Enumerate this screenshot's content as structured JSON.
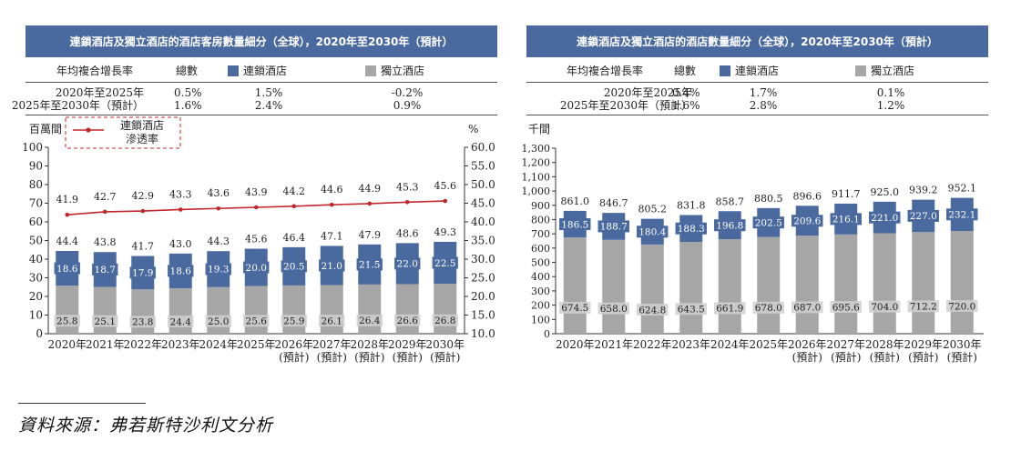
{
  "source": "資料來源：弗若斯特沙利文分析",
  "charts": [
    {
      "title": "連鎖酒店及獨立酒店的酒店客房數量細分（全球），2020年至2030年（預計）",
      "growth_table": {
        "header": [
          "年均複合增長率",
          "總數",
          "連鎖酒店",
          "獨立酒店"
        ],
        "rows": [
          {
            "period": "2020年至2025年",
            "total": "0.5%",
            "chain": "1.5%",
            "indep": "-0.2%"
          },
          {
            "period": "2025年至2030年（預計）",
            "total": "1.6%",
            "chain": "2.4%",
            "indep": "0.9%"
          }
        ]
      },
      "chart_data": {
        "type": "bar",
        "stacked": true,
        "categories": [
          "2020年",
          "2021年",
          "2022年",
          "2023年",
          "2024年",
          "2025年",
          "2026年\n(預計)",
          "2027年\n(預計)",
          "2028年\n(預計)",
          "2029年\n(預計)",
          "2030年\n(預計)"
        ],
        "series": [
          {
            "name": "獨立酒店",
            "color": "#a6a6a6",
            "values": [
              25.8,
              25.1,
              23.8,
              24.4,
              25.0,
              25.6,
              25.9,
              26.1,
              26.4,
              26.6,
              26.8
            ]
          },
          {
            "name": "連鎖酒店",
            "color": "#4a6a9f",
            "values": [
              18.6,
              18.7,
              17.9,
              18.6,
              19.3,
              20.0,
              20.5,
              21.0,
              21.5,
              22.0,
              22.5
            ]
          }
        ],
        "totals": [
          44.4,
          43.8,
          41.7,
          43.0,
          44.3,
          45.6,
          46.4,
          47.1,
          47.9,
          48.6,
          49.3
        ],
        "line_series": {
          "name": "連鎖酒店\n滲透率",
          "color": "#c0282d",
          "axis": "right",
          "values": [
            41.9,
            42.7,
            42.9,
            43.3,
            43.6,
            43.9,
            44.2,
            44.6,
            44.9,
            45.3,
            45.6
          ]
        },
        "ylabel": "百萬間",
        "ylim": [
          0,
          100
        ],
        "yticks": [
          "0",
          "10",
          "20",
          "30",
          "40",
          "50",
          "60",
          "70",
          "80",
          "90",
          "100"
        ],
        "y2label": "%",
        "y2lim": [
          10,
          60
        ],
        "y2ticks": [
          "10.0",
          "15.0",
          "20.0",
          "25.0",
          "30.0",
          "35.0",
          "40.0",
          "45.0",
          "50.0",
          "55.0",
          "60.0"
        ],
        "grid": false
      }
    },
    {
      "title": "連鎖酒店及獨立酒店的酒店數量細分（全球），2020年至2030年（預計）",
      "growth_table": {
        "header": [
          "年均複合增長率",
          "總數",
          "連鎖酒店",
          "獨立酒店"
        ],
        "rows": [
          {
            "period": "2020年至2025年",
            "total": "0.4%",
            "chain": "1.7%",
            "indep": "0.1%"
          },
          {
            "period": "2025年至2030年（預計）",
            "total": "1.6%",
            "chain": "2.8%",
            "indep": "1.2%"
          }
        ]
      },
      "chart_data": {
        "type": "bar",
        "stacked": true,
        "categories": [
          "2020年",
          "2021年",
          "2022年",
          "2023年",
          "2024年",
          "2025年",
          "2026年\n(預計)",
          "2027年\n(預計)",
          "2028年\n(預計)",
          "2029年\n(預計)",
          "2030年\n(預計)"
        ],
        "series": [
          {
            "name": "獨立酒店",
            "color": "#a6a6a6",
            "values": [
              674.5,
              658.0,
              624.8,
              643.5,
              661.9,
              678.0,
              687.0,
              695.6,
              704.0,
              712.2,
              720.0
            ]
          },
          {
            "name": "連鎖酒店",
            "color": "#4a6a9f",
            "values": [
              186.5,
              188.7,
              180.4,
              188.3,
              196.8,
              202.5,
              209.6,
              216.1,
              221.0,
              227.0,
              232.1
            ]
          }
        ],
        "totals": [
          861.0,
          846.7,
          805.2,
          831.8,
          858.7,
          880.5,
          896.6,
          911.7,
          925.0,
          939.2,
          952.1
        ],
        "ylabel": "千間",
        "ylim": [
          0,
          1300
        ],
        "yticks": [
          "0",
          "100",
          "200",
          "300",
          "400",
          "500",
          "600",
          "700",
          "800",
          "900",
          "1,000",
          "1,100",
          "1,200",
          "1,300"
        ],
        "grid": false
      }
    }
  ]
}
